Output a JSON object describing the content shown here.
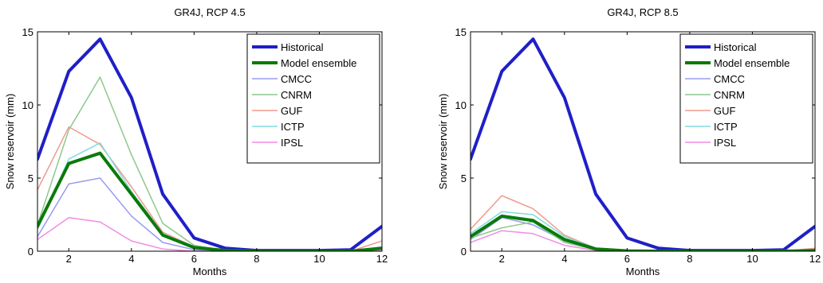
{
  "chart_data": [
    {
      "type": "line",
      "title": "GR4J, RCP 4.5",
      "xlabel": "Months",
      "ylabel": "Snow reservoir (mm)",
      "xlim": [
        1,
        12
      ],
      "ylim": [
        0,
        15
      ],
      "xticks": [
        2,
        4,
        6,
        8,
        10,
        12
      ],
      "yticks": [
        0,
        5,
        10,
        15
      ],
      "grid": false,
      "legend_position": "top-right",
      "x": [
        1,
        2,
        3,
        4,
        5,
        6,
        7,
        8,
        9,
        10,
        11,
        12
      ],
      "series": [
        {
          "name": "Historical",
          "color": "#1f1fc8",
          "width": 4,
          "values": [
            6.3,
            12.3,
            14.5,
            10.5,
            3.9,
            0.9,
            0.2,
            0.05,
            0.05,
            0.05,
            0.1,
            1.7
          ]
        },
        {
          "name": "Model ensemble",
          "color": "#0a7a0a",
          "width": 4,
          "values": [
            1.7,
            6.0,
            6.7,
            3.9,
            1.1,
            0.25,
            0.05,
            0.0,
            0.0,
            0.0,
            0.0,
            0.2
          ]
        },
        {
          "name": "CMCC",
          "color": "#9a9af0",
          "width": 1.5,
          "values": [
            1.0,
            4.6,
            5.0,
            2.4,
            0.6,
            0.1,
            0.0,
            0.0,
            0.0,
            0.0,
            0.0,
            0.1
          ]
        },
        {
          "name": "CNRM",
          "color": "#8cc88c",
          "width": 1.5,
          "values": [
            1.8,
            8.3,
            11.9,
            6.6,
            1.9,
            0.4,
            0.05,
            0.0,
            0.0,
            0.0,
            0.0,
            0.3
          ]
        },
        {
          "name": "GUF",
          "color": "#f09a8c",
          "width": 1.5,
          "values": [
            4.2,
            8.5,
            7.3,
            4.4,
            1.3,
            0.3,
            0.05,
            0.0,
            0.0,
            0.0,
            0.0,
            0.7
          ]
        },
        {
          "name": "ICTP",
          "color": "#80dcdc",
          "width": 1.5,
          "values": [
            1.5,
            6.3,
            7.4,
            4.1,
            1.2,
            0.3,
            0.05,
            0.0,
            0.0,
            0.0,
            0.0,
            0.3
          ]
        },
        {
          "name": "IPSL",
          "color": "#f08ce6",
          "width": 1.5,
          "values": [
            0.8,
            2.3,
            2.0,
            0.7,
            0.15,
            0.0,
            0.0,
            0.0,
            0.0,
            0.0,
            0.0,
            0.05
          ]
        }
      ]
    },
    {
      "type": "line",
      "title": "GR4J, RCP 8.5",
      "xlabel": "Months",
      "ylabel": "Snow reservoir (mm)",
      "xlim": [
        1,
        12
      ],
      "ylim": [
        0,
        15
      ],
      "xticks": [
        2,
        4,
        6,
        8,
        10,
        12
      ],
      "yticks": [
        0,
        5,
        10,
        15
      ],
      "grid": false,
      "legend_position": "top-right",
      "x": [
        1,
        2,
        3,
        4,
        5,
        6,
        7,
        8,
        9,
        10,
        11,
        12
      ],
      "series": [
        {
          "name": "Historical",
          "color": "#1f1fc8",
          "width": 4,
          "values": [
            6.3,
            12.3,
            14.5,
            10.5,
            3.9,
            0.9,
            0.2,
            0.05,
            0.05,
            0.05,
            0.1,
            1.7
          ]
        },
        {
          "name": "Model ensemble",
          "color": "#0a7a0a",
          "width": 4,
          "values": [
            1.0,
            2.4,
            2.1,
            0.8,
            0.15,
            0.02,
            0.0,
            0.0,
            0.0,
            0.0,
            0.0,
            0.05
          ]
        },
        {
          "name": "CMCC",
          "color": "#9a9af0",
          "width": 1.5,
          "values": [
            0.8,
            2.3,
            1.8,
            0.7,
            0.1,
            0.0,
            0.0,
            0.0,
            0.0,
            0.0,
            0.0,
            0.05
          ]
        },
        {
          "name": "CNRM",
          "color": "#8cc88c",
          "width": 1.5,
          "values": [
            0.9,
            1.6,
            2.0,
            0.6,
            0.1,
            0.0,
            0.0,
            0.0,
            0.0,
            0.0,
            0.0,
            0.05
          ]
        },
        {
          "name": "GUF",
          "color": "#f09a8c",
          "width": 1.5,
          "values": [
            1.5,
            3.8,
            2.9,
            1.1,
            0.2,
            0.05,
            0.0,
            0.0,
            0.0,
            0.0,
            0.0,
            0.2
          ]
        },
        {
          "name": "ICTP",
          "color": "#80dcdc",
          "width": 1.5,
          "values": [
            1.2,
            2.7,
            2.5,
            1.0,
            0.2,
            0.05,
            0.0,
            0.0,
            0.0,
            0.0,
            0.0,
            0.1
          ]
        },
        {
          "name": "IPSL",
          "color": "#f08ce6",
          "width": 1.5,
          "values": [
            0.6,
            1.4,
            1.2,
            0.4,
            0.05,
            0.0,
            0.0,
            0.0,
            0.0,
            0.0,
            0.0,
            0.02
          ]
        }
      ]
    }
  ]
}
